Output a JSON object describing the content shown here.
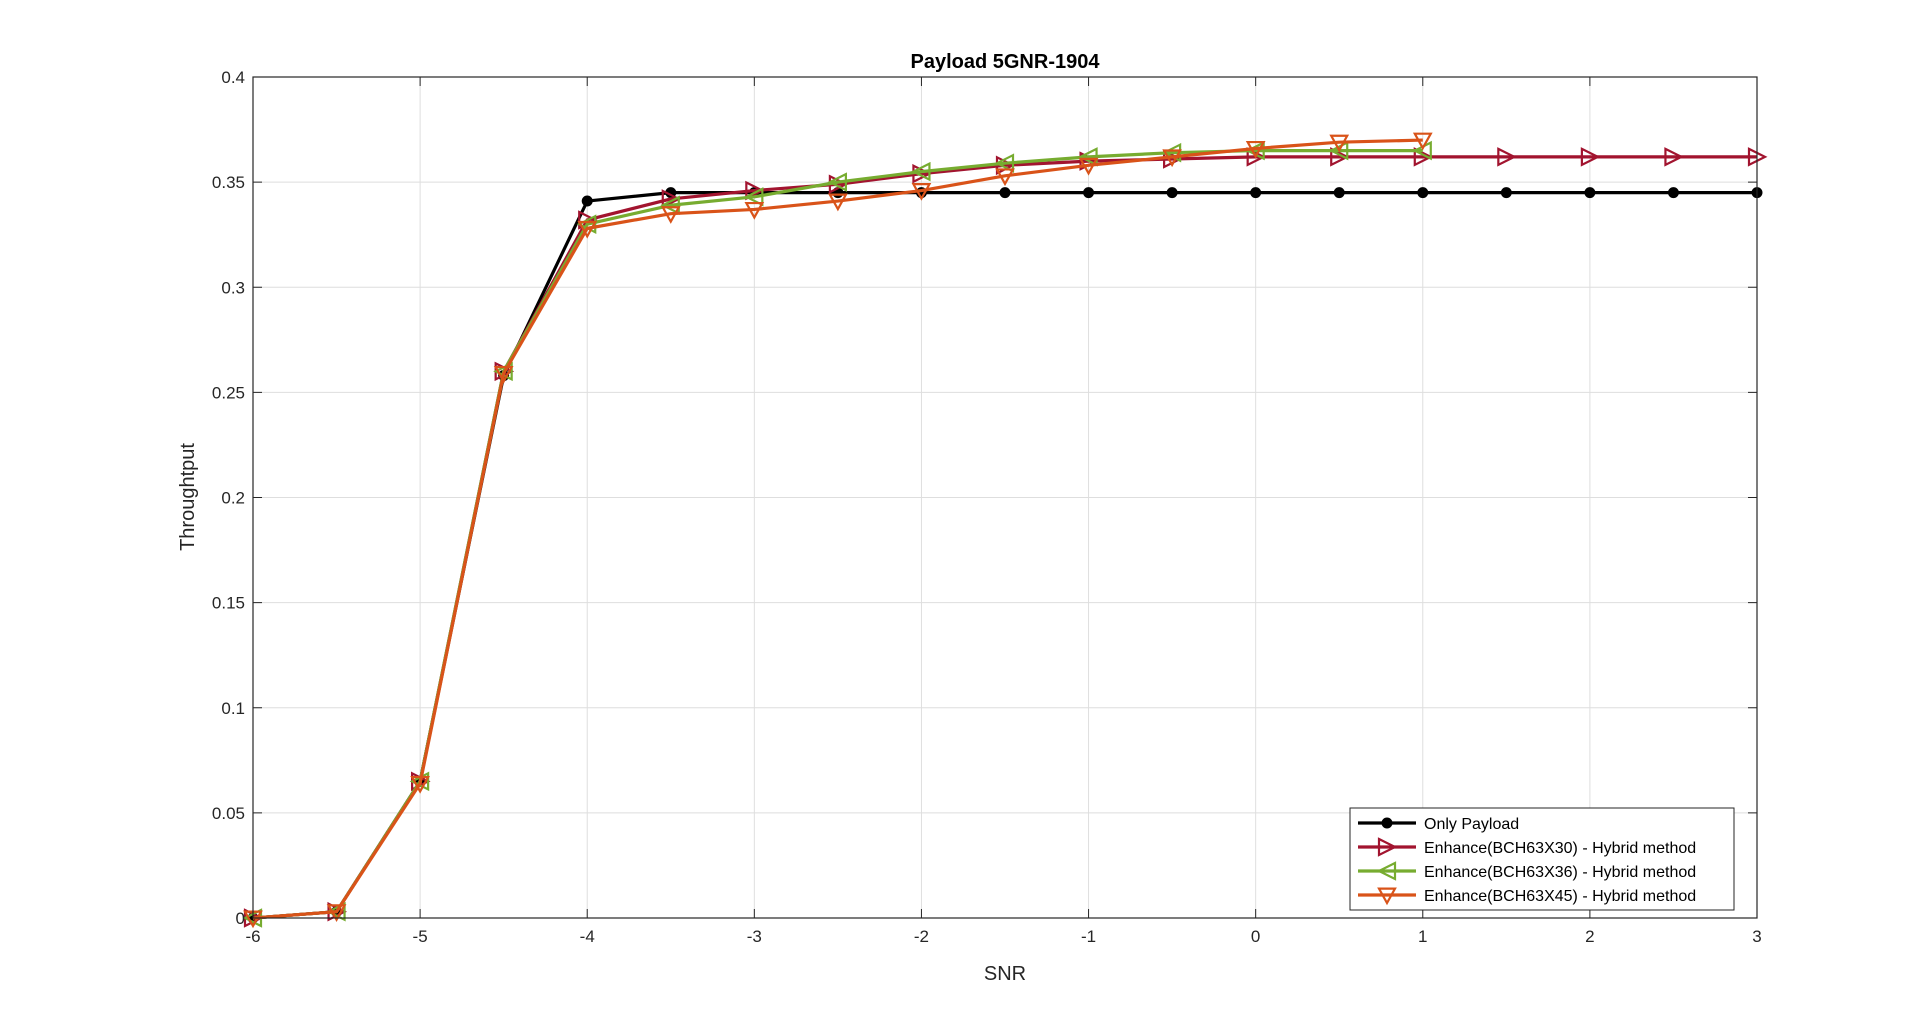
{
  "chart_data": {
    "type": "line",
    "title": "Payload 5GNR-1904",
    "xlabel": "SNR",
    "ylabel": "Throughtput",
    "xlim": [
      -6,
      3
    ],
    "ylim": [
      0,
      0.4
    ],
    "xticks": [
      -6,
      -5,
      -4,
      -3,
      -2,
      -1,
      0,
      1,
      2,
      3
    ],
    "yticks": [
      0,
      0.05,
      0.1,
      0.15,
      0.2,
      0.25,
      0.3,
      0.35,
      0.4
    ],
    "xtick_labels": [
      "-6",
      "-5",
      "-4",
      "-3",
      "-2",
      "-1",
      "0",
      "1",
      "2",
      "3"
    ],
    "ytick_labels": [
      "0",
      "0.05",
      "0.1",
      "0.15",
      "0.2",
      "0.25",
      "0.3",
      "0.35",
      "0.4"
    ],
    "grid": true,
    "legend_position": "bottom-right",
    "series": [
      {
        "name": "Only Payload",
        "color": "#000000",
        "marker": "circle",
        "x": [
          -6,
          -5.5,
          -5,
          -4.5,
          -4,
          -3.5,
          -3,
          -2.5,
          -2,
          -1.5,
          -1,
          -0.5,
          0,
          0.5,
          1,
          1.5,
          2,
          2.5,
          3
        ],
        "y": [
          0,
          0.003,
          0.065,
          0.258,
          0.341,
          0.345,
          0.345,
          0.345,
          0.345,
          0.345,
          0.345,
          0.345,
          0.345,
          0.345,
          0.345,
          0.345,
          0.345,
          0.345,
          0.345
        ]
      },
      {
        "name": "Enhance(BCH63X30) - Hybrid method",
        "color": "#a2142f",
        "marker": "triangle-right",
        "x": [
          -6,
          -5.5,
          -5,
          -4.5,
          -4,
          -3.5,
          -3,
          -2.5,
          -2,
          -1.5,
          -1,
          -0.5,
          0,
          0.5,
          1,
          1.5,
          2,
          2.5,
          3
        ],
        "y": [
          0,
          0.003,
          0.065,
          0.26,
          0.332,
          0.342,
          0.346,
          0.349,
          0.354,
          0.358,
          0.36,
          0.361,
          0.362,
          0.362,
          0.362,
          0.362,
          0.362,
          0.362,
          0.362
        ]
      },
      {
        "name": "Enhance(BCH63X36) - Hybrid method",
        "color": "#77ac30",
        "marker": "triangle-left",
        "x": [
          -6,
          -5.5,
          -5,
          -4.5,
          -4,
          -3.5,
          -3,
          -2.5,
          -2,
          -1.5,
          -1,
          -0.5,
          0,
          0.5,
          1
        ],
        "y": [
          0,
          0.003,
          0.065,
          0.26,
          0.33,
          0.339,
          0.343,
          0.35,
          0.355,
          0.359,
          0.362,
          0.364,
          0.365,
          0.365,
          0.365
        ]
      },
      {
        "name": "Enhance(BCH63X45) - Hybrid method",
        "color": "#d95319",
        "marker": "triangle-down",
        "x": [
          -6,
          -5.5,
          -5,
          -4.5,
          -4,
          -3.5,
          -3,
          -2.5,
          -2,
          -1.5,
          -1,
          -0.5,
          0,
          0.5,
          1
        ],
        "y": [
          0,
          0.003,
          0.064,
          0.259,
          0.328,
          0.335,
          0.337,
          0.341,
          0.346,
          0.353,
          0.358,
          0.362,
          0.366,
          0.369,
          0.37
        ]
      }
    ]
  }
}
